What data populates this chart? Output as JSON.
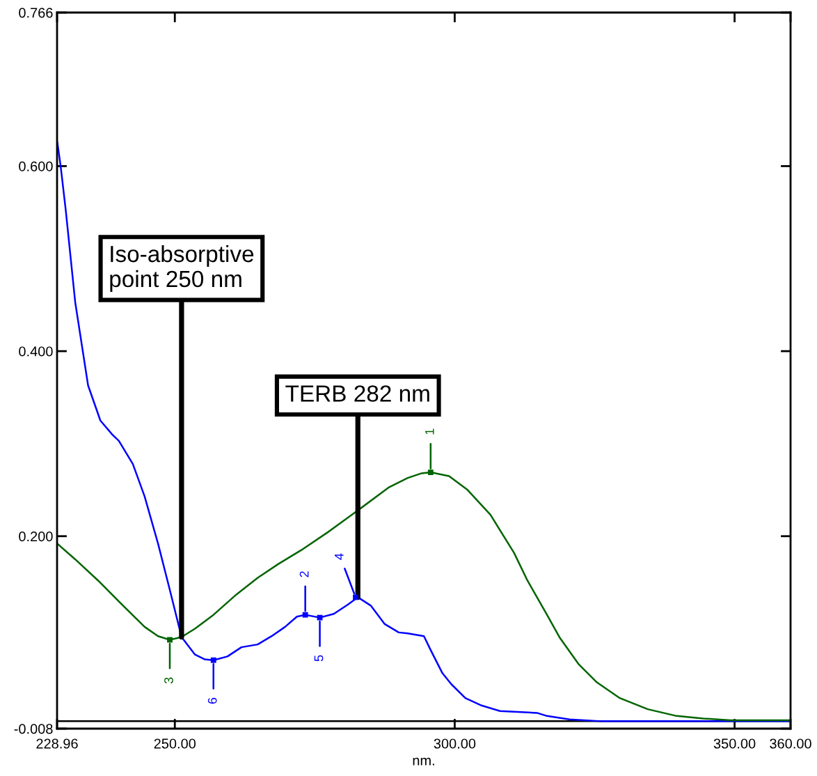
{
  "chart_data": {
    "type": "line",
    "xlabel": "nm.",
    "xlim": [
      228.96,
      360
    ],
    "xticks": [
      {
        "value": 228.96,
        "label": "228.96"
      },
      {
        "value": 250,
        "label": "250.00"
      },
      {
        "value": 300,
        "label": "300.00"
      },
      {
        "value": 350,
        "label": "350.00"
      },
      {
        "value": 360,
        "label": "360.00"
      }
    ],
    "ylim": [
      -0.008,
      0.766
    ],
    "yticks": [
      {
        "value": -0.008,
        "label": "-0.008"
      },
      {
        "value": 0.2,
        "label": "0.200"
      },
      {
        "value": 0.4,
        "label": "0.400"
      },
      {
        "value": 0.6,
        "label": "0.600"
      },
      {
        "value": 0.766,
        "label": "0.766"
      }
    ],
    "ref_lines": [
      {
        "axis": "y",
        "value": 0,
        "color": "#000000"
      }
    ],
    "annotations": [
      {
        "text": "Iso-absorptive\npoint 250 nm",
        "x": 251.2,
        "y": 0.091
      },
      {
        "text": "TERB 282 nm",
        "x": 282.7,
        "y": 0.134
      },
      {
        "text": "1",
        "x": 295.7,
        "y": 0.269
      },
      {
        "text": "3",
        "x": 249.1,
        "y": 0.088
      },
      {
        "text": "4",
        "x": 282.3,
        "y": 0.134
      },
      {
        "text": "2",
        "x": 273.3,
        "y": 0.115
      },
      {
        "text": "5",
        "x": 275.9,
        "y": 0.112
      },
      {
        "text": "6",
        "x": 256.9,
        "y": 0.066
      }
    ],
    "series": [
      {
        "color": "#0000ff",
        "x": [
          229.0,
          229.6,
          230.5,
          232.2,
          234.5,
          236.7,
          238.8,
          240.0,
          242.5,
          244.6,
          247.0,
          249.1,
          251.2,
          253.6,
          255.3,
          256.9,
          259.4,
          261.9,
          264.8,
          267.3,
          269.7,
          271.8,
          273.3,
          275.9,
          278.4,
          280.9,
          282.7,
          285.0,
          287.5,
          290.0,
          291.6,
          294.5,
          295.7,
          297.8,
          299.4,
          301.9,
          304.8,
          308.1,
          314.7,
          316.3,
          320.5,
          326.2,
          340.0,
          360.0
        ],
        "values": [
          0.626,
          0.6,
          0.553,
          0.453,
          0.363,
          0.325,
          0.31,
          0.303,
          0.278,
          0.243,
          0.192,
          0.142,
          0.091,
          0.072,
          0.067,
          0.066,
          0.07,
          0.08,
          0.083,
          0.092,
          0.102,
          0.113,
          0.115,
          0.112,
          0.116,
          0.126,
          0.134,
          0.125,
          0.105,
          0.096,
          0.095,
          0.092,
          0.077,
          0.052,
          0.04,
          0.025,
          0.017,
          0.011,
          0.009,
          0.006,
          0.002,
          0.0,
          0.0,
          0.0
        ]
      },
      {
        "color": "#006400",
        "x": [
          229.0,
          232.2,
          236.3,
          240.4,
          244.6,
          247.0,
          249.1,
          251.2,
          253.6,
          256.9,
          261.0,
          264.8,
          268.5,
          272.6,
          277.5,
          282.5,
          288.3,
          291.6,
          294.1,
          295.7,
          299.0,
          302.3,
          306.4,
          310.6,
          313.0,
          316.3,
          318.8,
          322.1,
          325.4,
          329.5,
          334.5,
          339.4,
          344.4,
          349.3,
          360.0
        ],
        "values": [
          0.192,
          0.175,
          0.152,
          0.127,
          0.102,
          0.092,
          0.088,
          0.091,
          0.1,
          0.115,
          0.137,
          0.155,
          0.17,
          0.185,
          0.205,
          0.227,
          0.253,
          0.263,
          0.268,
          0.269,
          0.265,
          0.25,
          0.223,
          0.182,
          0.152,
          0.117,
          0.09,
          0.062,
          0.042,
          0.025,
          0.013,
          0.006,
          0.003,
          0.001,
          0.001
        ]
      },
      {
        "type": "scatter",
        "marker": "square",
        "color": "#006400",
        "x": [
          295.7,
          249.1
        ],
        "values": [
          0.269,
          0.088
        ]
      },
      {
        "type": "scatter",
        "marker": "square",
        "color": "#0000ff",
        "x": [
          282.3,
          273.3,
          275.9,
          256.9
        ],
        "values": [
          0.134,
          0.115,
          0.112,
          0.066
        ]
      }
    ]
  }
}
